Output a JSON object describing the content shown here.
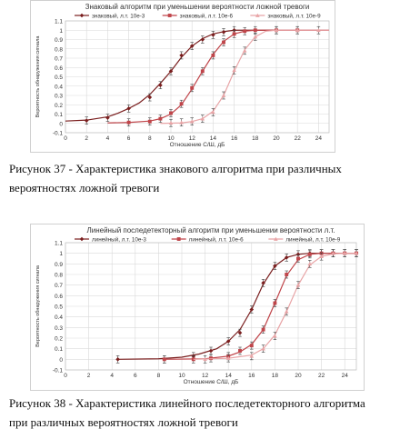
{
  "chart_data": [
    {
      "type": "line",
      "title": "Знаковый алгоритм при уменьшении вероятности ложной тревоги",
      "xlabel": "Отношение С/Ш, дБ",
      "ylabel": "Вероятность обнаружения сигнала",
      "xlim": [
        0,
        25
      ],
      "ylim": [
        -0.1,
        1.1
      ],
      "xticks": [
        0,
        2,
        4,
        6,
        8,
        10,
        12,
        14,
        16,
        18,
        20,
        22,
        24
      ],
      "yticks": [
        -0.1,
        0,
        0.1,
        0.2,
        0.3,
        0.4,
        0.5,
        0.6,
        0.7,
        0.8,
        0.9,
        1,
        1.1
      ],
      "grid": true,
      "legend_position": "top",
      "series": [
        {
          "name": "знаковый, л.т. 10е-3",
          "color": "#7a1e1e",
          "marker": "diamond",
          "points": [
            [
              2,
              0.03
            ],
            [
              4,
              0.06
            ],
            [
              6,
              0.16
            ],
            [
              8,
              0.28
            ],
            [
              9,
              0.41
            ],
            [
              10,
              0.56
            ],
            [
              11,
              0.73
            ],
            [
              12,
              0.83
            ],
            [
              13,
              0.9
            ],
            [
              14,
              0.95
            ],
            [
              15,
              0.98
            ],
            [
              16,
              1.0
            ]
          ],
          "curve": [
            [
              0,
              0.025
            ],
            [
              2,
              0.035
            ],
            [
              4,
              0.07
            ],
            [
              5,
              0.11
            ],
            [
              6,
              0.16
            ],
            [
              7,
              0.22
            ],
            [
              8,
              0.31
            ],
            [
              9,
              0.43
            ],
            [
              10,
              0.56
            ],
            [
              11,
              0.71
            ],
            [
              12,
              0.83
            ],
            [
              13,
              0.91
            ],
            [
              14,
              0.96
            ],
            [
              15,
              0.985
            ],
            [
              16,
              1.0
            ],
            [
              25,
              1.0
            ]
          ]
        },
        {
          "name": "знаковый, л.т. 10е-6",
          "color": "#c0454a",
          "marker": "square",
          "points": [
            [
              6,
              0.01
            ],
            [
              8,
              0.02
            ],
            [
              9,
              0.05
            ],
            [
              10,
              0.11
            ],
            [
              11,
              0.21
            ],
            [
              12,
              0.38
            ],
            [
              13,
              0.56
            ],
            [
              14,
              0.73
            ],
            [
              15,
              0.87
            ],
            [
              16,
              0.96
            ],
            [
              17,
              0.99
            ],
            [
              18,
              1.0
            ],
            [
              20,
              1.0
            ],
            [
              22,
              1.0
            ]
          ],
          "curve": [
            [
              4,
              0.005
            ],
            [
              6,
              0.01
            ],
            [
              8,
              0.025
            ],
            [
              9,
              0.05
            ],
            [
              10,
              0.1
            ],
            [
              11,
              0.2
            ],
            [
              12,
              0.37
            ],
            [
              13,
              0.56
            ],
            [
              14,
              0.74
            ],
            [
              15,
              0.88
            ],
            [
              16,
              0.96
            ],
            [
              17,
              0.99
            ],
            [
              18,
              1.0
            ],
            [
              25,
              1.0
            ]
          ]
        },
        {
          "name": "знаковый, л.т. 10е-9",
          "color": "#e8a4a6",
          "marker": "triangle",
          "points": [
            [
              10,
              0.005
            ],
            [
              11,
              0.01
            ],
            [
              12,
              0.02
            ],
            [
              13,
              0.05
            ],
            [
              14,
              0.12
            ],
            [
              15,
              0.3
            ],
            [
              16,
              0.57
            ],
            [
              17,
              0.78
            ],
            [
              18,
              0.93
            ],
            [
              20,
              1.0
            ],
            [
              22,
              1.0
            ],
            [
              24,
              1.0
            ]
          ],
          "curve": [
            [
              9,
              0.0
            ],
            [
              11,
              0.005
            ],
            [
              12,
              0.02
            ],
            [
              13,
              0.05
            ],
            [
              14,
              0.13
            ],
            [
              15,
              0.3
            ],
            [
              16,
              0.56
            ],
            [
              17,
              0.79
            ],
            [
              18,
              0.93
            ],
            [
              19,
              0.99
            ],
            [
              20,
              1.0
            ],
            [
              25,
              1.0
            ]
          ]
        }
      ]
    },
    {
      "type": "line",
      "title": "Линейный последетекторный алгоритм при уменьшении вероятности л.т.",
      "xlabel": "Отношение С/Ш, дБ",
      "ylabel": "Вероятность обнаружения сигнала",
      "xlim": [
        0,
        25
      ],
      "ylim": [
        -0.1,
        1.1
      ],
      "xticks": [
        0,
        2,
        4,
        6,
        8,
        10,
        12,
        14,
        16,
        18,
        20,
        22,
        24
      ],
      "yticks": [
        -0.1,
        0,
        0.1,
        0.2,
        0.3,
        0.4,
        0.5,
        0.6,
        0.7,
        0.8,
        0.9,
        1,
        1.1
      ],
      "grid": true,
      "legend_position": "top",
      "series": [
        {
          "name": "линейный, л.т. 10е-3",
          "color": "#7a1e1e",
          "marker": "diamond",
          "points": [
            [
              4.5,
              0.0
            ],
            [
              8.5,
              0.0
            ],
            [
              11,
              0.03
            ],
            [
              12.5,
              0.08
            ],
            [
              14,
              0.17
            ],
            [
              15,
              0.25
            ],
            [
              16,
              0.47
            ],
            [
              17,
              0.72
            ],
            [
              18,
              0.88
            ],
            [
              19,
              0.96
            ],
            [
              20,
              0.99
            ],
            [
              21,
              1.0
            ],
            [
              22,
              1.0
            ],
            [
              23,
              1.0
            ],
            [
              24,
              1.0
            ],
            [
              25,
              1.0
            ]
          ],
          "curve": [
            [
              4.5,
              0.0
            ],
            [
              8,
              0.005
            ],
            [
              10,
              0.02
            ],
            [
              11.5,
              0.05
            ],
            [
              13,
              0.1
            ],
            [
              14,
              0.17
            ],
            [
              15,
              0.28
            ],
            [
              16,
              0.47
            ],
            [
              17,
              0.71
            ],
            [
              18,
              0.88
            ],
            [
              19,
              0.96
            ],
            [
              20,
              0.99
            ],
            [
              21,
              1.0
            ],
            [
              25,
              1.0
            ]
          ]
        },
        {
          "name": "линейный, л.т. 10е-6",
          "color": "#c0454a",
          "marker": "square",
          "points": [
            [
              8.5,
              0.0
            ],
            [
              11,
              0.0
            ],
            [
              12.5,
              0.01
            ],
            [
              14,
              0.03
            ],
            [
              15,
              0.08
            ],
            [
              16,
              0.13
            ],
            [
              17,
              0.28
            ],
            [
              18,
              0.53
            ],
            [
              19,
              0.8
            ],
            [
              20,
              0.95
            ],
            [
              21,
              0.99
            ],
            [
              22,
              1.0
            ],
            [
              23,
              1.0
            ],
            [
              24,
              1.0
            ],
            [
              25,
              1.0
            ]
          ],
          "curve": [
            [
              8.5,
              0.0
            ],
            [
              12,
              0.005
            ],
            [
              14,
              0.03
            ],
            [
              15,
              0.07
            ],
            [
              16,
              0.14
            ],
            [
              17,
              0.28
            ],
            [
              18,
              0.53
            ],
            [
              19,
              0.79
            ],
            [
              20,
              0.94
            ],
            [
              21,
              0.99
            ],
            [
              22,
              1.0
            ],
            [
              25,
              1.0
            ]
          ]
        },
        {
          "name": "линейный, л.т. 10е-9",
          "color": "#e8a4a6",
          "marker": "triangle",
          "points": [
            [
              12,
              0.0
            ],
            [
              14,
              0.01
            ],
            [
              16,
              0.03
            ],
            [
              17,
              0.1
            ],
            [
              18,
              0.22
            ],
            [
              19,
              0.45
            ],
            [
              20,
              0.7
            ],
            [
              21,
              0.9
            ],
            [
              22,
              0.97
            ],
            [
              23,
              1.0
            ],
            [
              24,
              1.0
            ],
            [
              25,
              1.0
            ]
          ],
          "curve": [
            [
              11,
              0.0
            ],
            [
              14,
              0.01
            ],
            [
              16,
              0.04
            ],
            [
              17,
              0.1
            ],
            [
              18,
              0.23
            ],
            [
              19,
              0.45
            ],
            [
              20,
              0.7
            ],
            [
              21,
              0.89
            ],
            [
              22,
              0.97
            ],
            [
              23,
              0.995
            ],
            [
              24,
              1.0
            ],
            [
              25,
              1.0
            ]
          ]
        }
      ]
    }
  ],
  "captions": {
    "fig37_line1": "Рисунок 37 - Характеристика знакового алгоритма при различных",
    "fig37_line2": "вероятностях ложной тревоги",
    "fig38_line1": "Рисунок 38 - Характеристика линейного последетекторного алгоритма",
    "fig38_line2": "при различных вероятностях ложной тревоги"
  }
}
